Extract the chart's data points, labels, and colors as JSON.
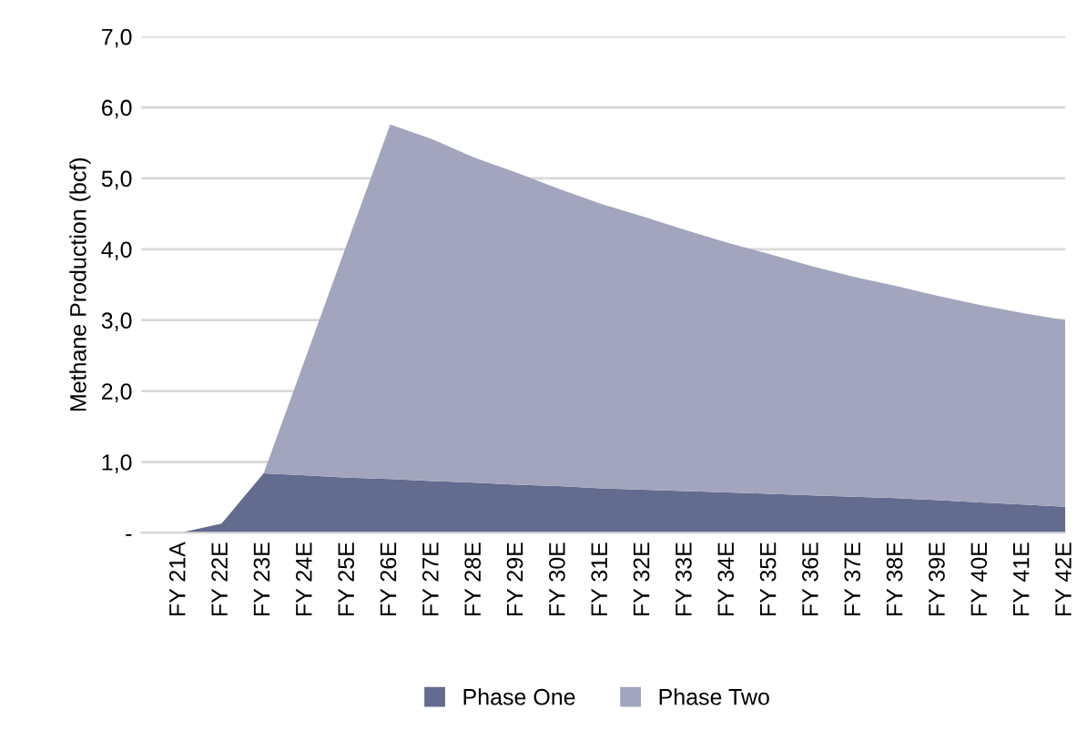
{
  "chart_data": {
    "type": "area",
    "stacked": true,
    "ylabel": "Methane Production (bcf)",
    "categories": [
      "FY 21A",
      "FY 22E",
      "FY 23E",
      "FY 24E",
      "FY 25E",
      "FY 26E",
      "FY 27E",
      "FY 28E",
      "FY 29E",
      "FY 30E",
      "FY 31E",
      "FY 32E",
      "FY 33E",
      "FY 34E",
      "FY 35E",
      "FY 36E",
      "FY 37E",
      "FY 38E",
      "FY 39E",
      "FY 40E",
      "FY 41E",
      "FY 42E"
    ],
    "series": [
      {
        "name": "Phase One",
        "color": "#636b8f",
        "values": [
          0,
          0.13,
          0.84,
          0.81,
          0.78,
          0.76,
          0.73,
          0.71,
          0.68,
          0.66,
          0.63,
          0.61,
          0.59,
          0.57,
          0.55,
          0.53,
          0.51,
          0.49,
          0.46,
          0.43,
          0.4,
          0.37
        ]
      },
      {
        "name": "Phase Two",
        "color": "#a2a5bd",
        "values": [
          0,
          0,
          0,
          1.67,
          3.34,
          5.0,
          4.82,
          4.58,
          4.4,
          4.19,
          4.01,
          3.85,
          3.68,
          3.52,
          3.38,
          3.23,
          3.1,
          2.99,
          2.88,
          2.78,
          2.7,
          2.63
        ]
      }
    ],
    "ylim": [
      0,
      7
    ],
    "yticks": [
      {
        "value": 0,
        "label": "-"
      },
      {
        "value": 1,
        "label": "1,0"
      },
      {
        "value": 2,
        "label": "2,0"
      },
      {
        "value": 3,
        "label": "3,0"
      },
      {
        "value": 4,
        "label": "4,0"
      },
      {
        "value": 5,
        "label": "5,0"
      },
      {
        "value": 6,
        "label": "6,0"
      },
      {
        "value": 7,
        "label": "7,0"
      }
    ],
    "grid": "y",
    "legend": "bottom"
  }
}
